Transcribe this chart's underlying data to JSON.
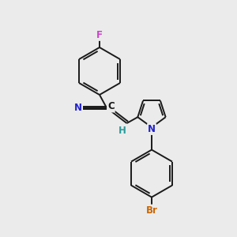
{
  "background_color": "#ebebeb",
  "bond_color": "#1a1a1a",
  "bond_width": 1.4,
  "atom_labels": {
    "F": {
      "color": "#cc44cc",
      "fontsize": 8.5
    },
    "N": {
      "color": "#2222cc",
      "fontsize": 8.5
    },
    "C": {
      "color": "#1a1a1a",
      "fontsize": 8.5
    },
    "H": {
      "color": "#2a9a9a",
      "fontsize": 8.5
    },
    "Br": {
      "color": "#cc6600",
      "fontsize": 8.5
    },
    "N_cn": {
      "color": "#2222cc",
      "fontsize": 8.5
    }
  },
  "layout": {
    "xlim": [
      0,
      10
    ],
    "ylim": [
      0,
      10
    ]
  }
}
